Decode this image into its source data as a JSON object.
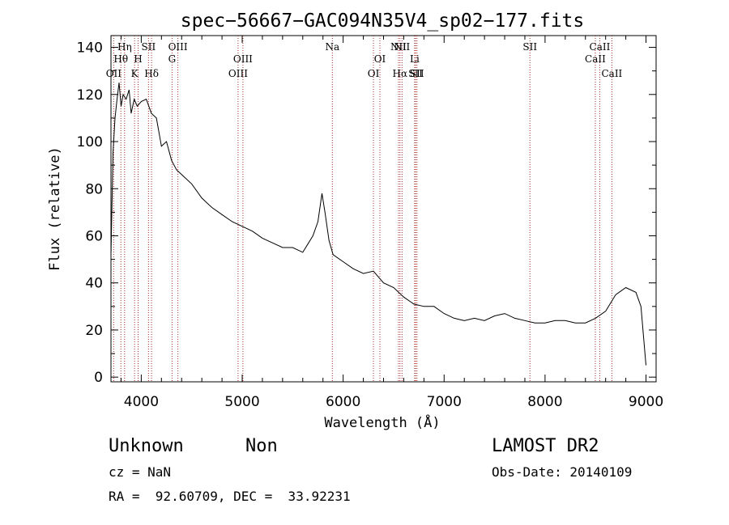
{
  "chart_data": {
    "type": "line",
    "title": "spec−56667−GAC094N35V4_sp02−177.fits",
    "xlabel": "Wavelength (Å)",
    "ylabel": "Flux (relative)",
    "xlim": [
      3700,
      9100
    ],
    "ylim": [
      -2,
      145
    ],
    "xticks": [
      4000,
      5000,
      6000,
      7000,
      8000,
      9000
    ],
    "yticks": [
      0,
      20,
      40,
      60,
      80,
      100,
      120,
      140
    ],
    "grid": false,
    "line_color": "#000000",
    "marker_color": "#a52a2a",
    "series": [
      {
        "x": [
          3700,
          3720,
          3740,
          3760,
          3780,
          3800,
          3820,
          3850,
          3880,
          3900,
          3930,
          3960,
          4000,
          4050,
          4100,
          4150,
          4200,
          4250,
          4300,
          4350,
          4400,
          4500,
          4600,
          4700,
          4800,
          4900,
          5000,
          5100,
          5200,
          5300,
          5400,
          5500,
          5600,
          5700,
          5750,
          5790,
          5820,
          5860,
          5900,
          6000,
          6100,
          6200,
          6300,
          6400,
          6500,
          6600,
          6700,
          6800,
          6900,
          7000,
          7100,
          7200,
          7300,
          7400,
          7500,
          7600,
          7700,
          7800,
          7900,
          8000,
          8100,
          8200,
          8300,
          8400,
          8500,
          8600,
          8700,
          8800,
          8900,
          8950,
          9000
        ],
        "y": [
          52,
          95,
          110,
          118,
          125,
          115,
          120,
          118,
          122,
          112,
          118,
          115,
          117,
          118,
          112,
          110,
          98,
          100,
          92,
          88,
          86,
          82,
          76,
          72,
          69,
          66,
          64,
          62,
          59,
          57,
          55,
          55,
          53,
          60,
          66,
          78,
          70,
          58,
          52,
          49,
          46,
          44,
          45,
          40,
          38,
          34,
          31,
          30,
          30,
          27,
          25,
          24,
          25,
          24,
          26,
          27,
          25,
          24,
          23,
          23,
          24,
          24,
          23,
          23,
          25,
          28,
          35,
          38,
          36,
          30,
          5
        ]
      }
    ],
    "annotations": [
      {
        "label": "OII",
        "x": 3727,
        "row": 3
      },
      {
        "label": "Hθ",
        "x": 3798,
        "row": 2
      },
      {
        "label": "Hη",
        "x": 3835,
        "row": 1
      },
      {
        "label": "K",
        "x": 3934,
        "row": 3
      },
      {
        "label": "H",
        "x": 3969,
        "row": 2
      },
      {
        "label": "SII",
        "x": 4072,
        "row": 1
      },
      {
        "label": "Hδ",
        "x": 4102,
        "row": 3
      },
      {
        "label": "G",
        "x": 4305,
        "row": 2
      },
      {
        "label": "OIII",
        "x": 4363,
        "row": 1
      },
      {
        "label": "OIII",
        "x": 4959,
        "row": 3
      },
      {
        "label": "OIII",
        "x": 5007,
        "row": 2
      },
      {
        "label": "Na",
        "x": 5893,
        "row": 1
      },
      {
        "label": "OI",
        "x": 6300,
        "row": 3
      },
      {
        "label": "OI",
        "x": 6364,
        "row": 2
      },
      {
        "label": "NII",
        "x": 6548,
        "row": 1
      },
      {
        "label": "Hα",
        "x": 6563,
        "row": 3
      },
      {
        "label": "NII",
        "x": 6583,
        "row": 1
      },
      {
        "label": "Li",
        "x": 6708,
        "row": 2
      },
      {
        "label": "SII",
        "x": 6717,
        "row": 3
      },
      {
        "label": "SII",
        "x": 6731,
        "row": 3
      },
      {
        "label": "SII",
        "x": 7850,
        "row": 1
      },
      {
        "label": "CaII",
        "x": 8498,
        "row": 2
      },
      {
        "label": "CaII",
        "x": 8542,
        "row": 1
      },
      {
        "label": "CaII",
        "x": 8662,
        "row": 3
      }
    ]
  },
  "footer": {
    "object_class": "Unknown",
    "subclass": "Non",
    "redshift": "cz = NaN",
    "coords": "RA =  92.60709, DEC =  33.92231",
    "survey": "LAMOST DR2",
    "obs_date": "Obs-Date: 20140109"
  }
}
